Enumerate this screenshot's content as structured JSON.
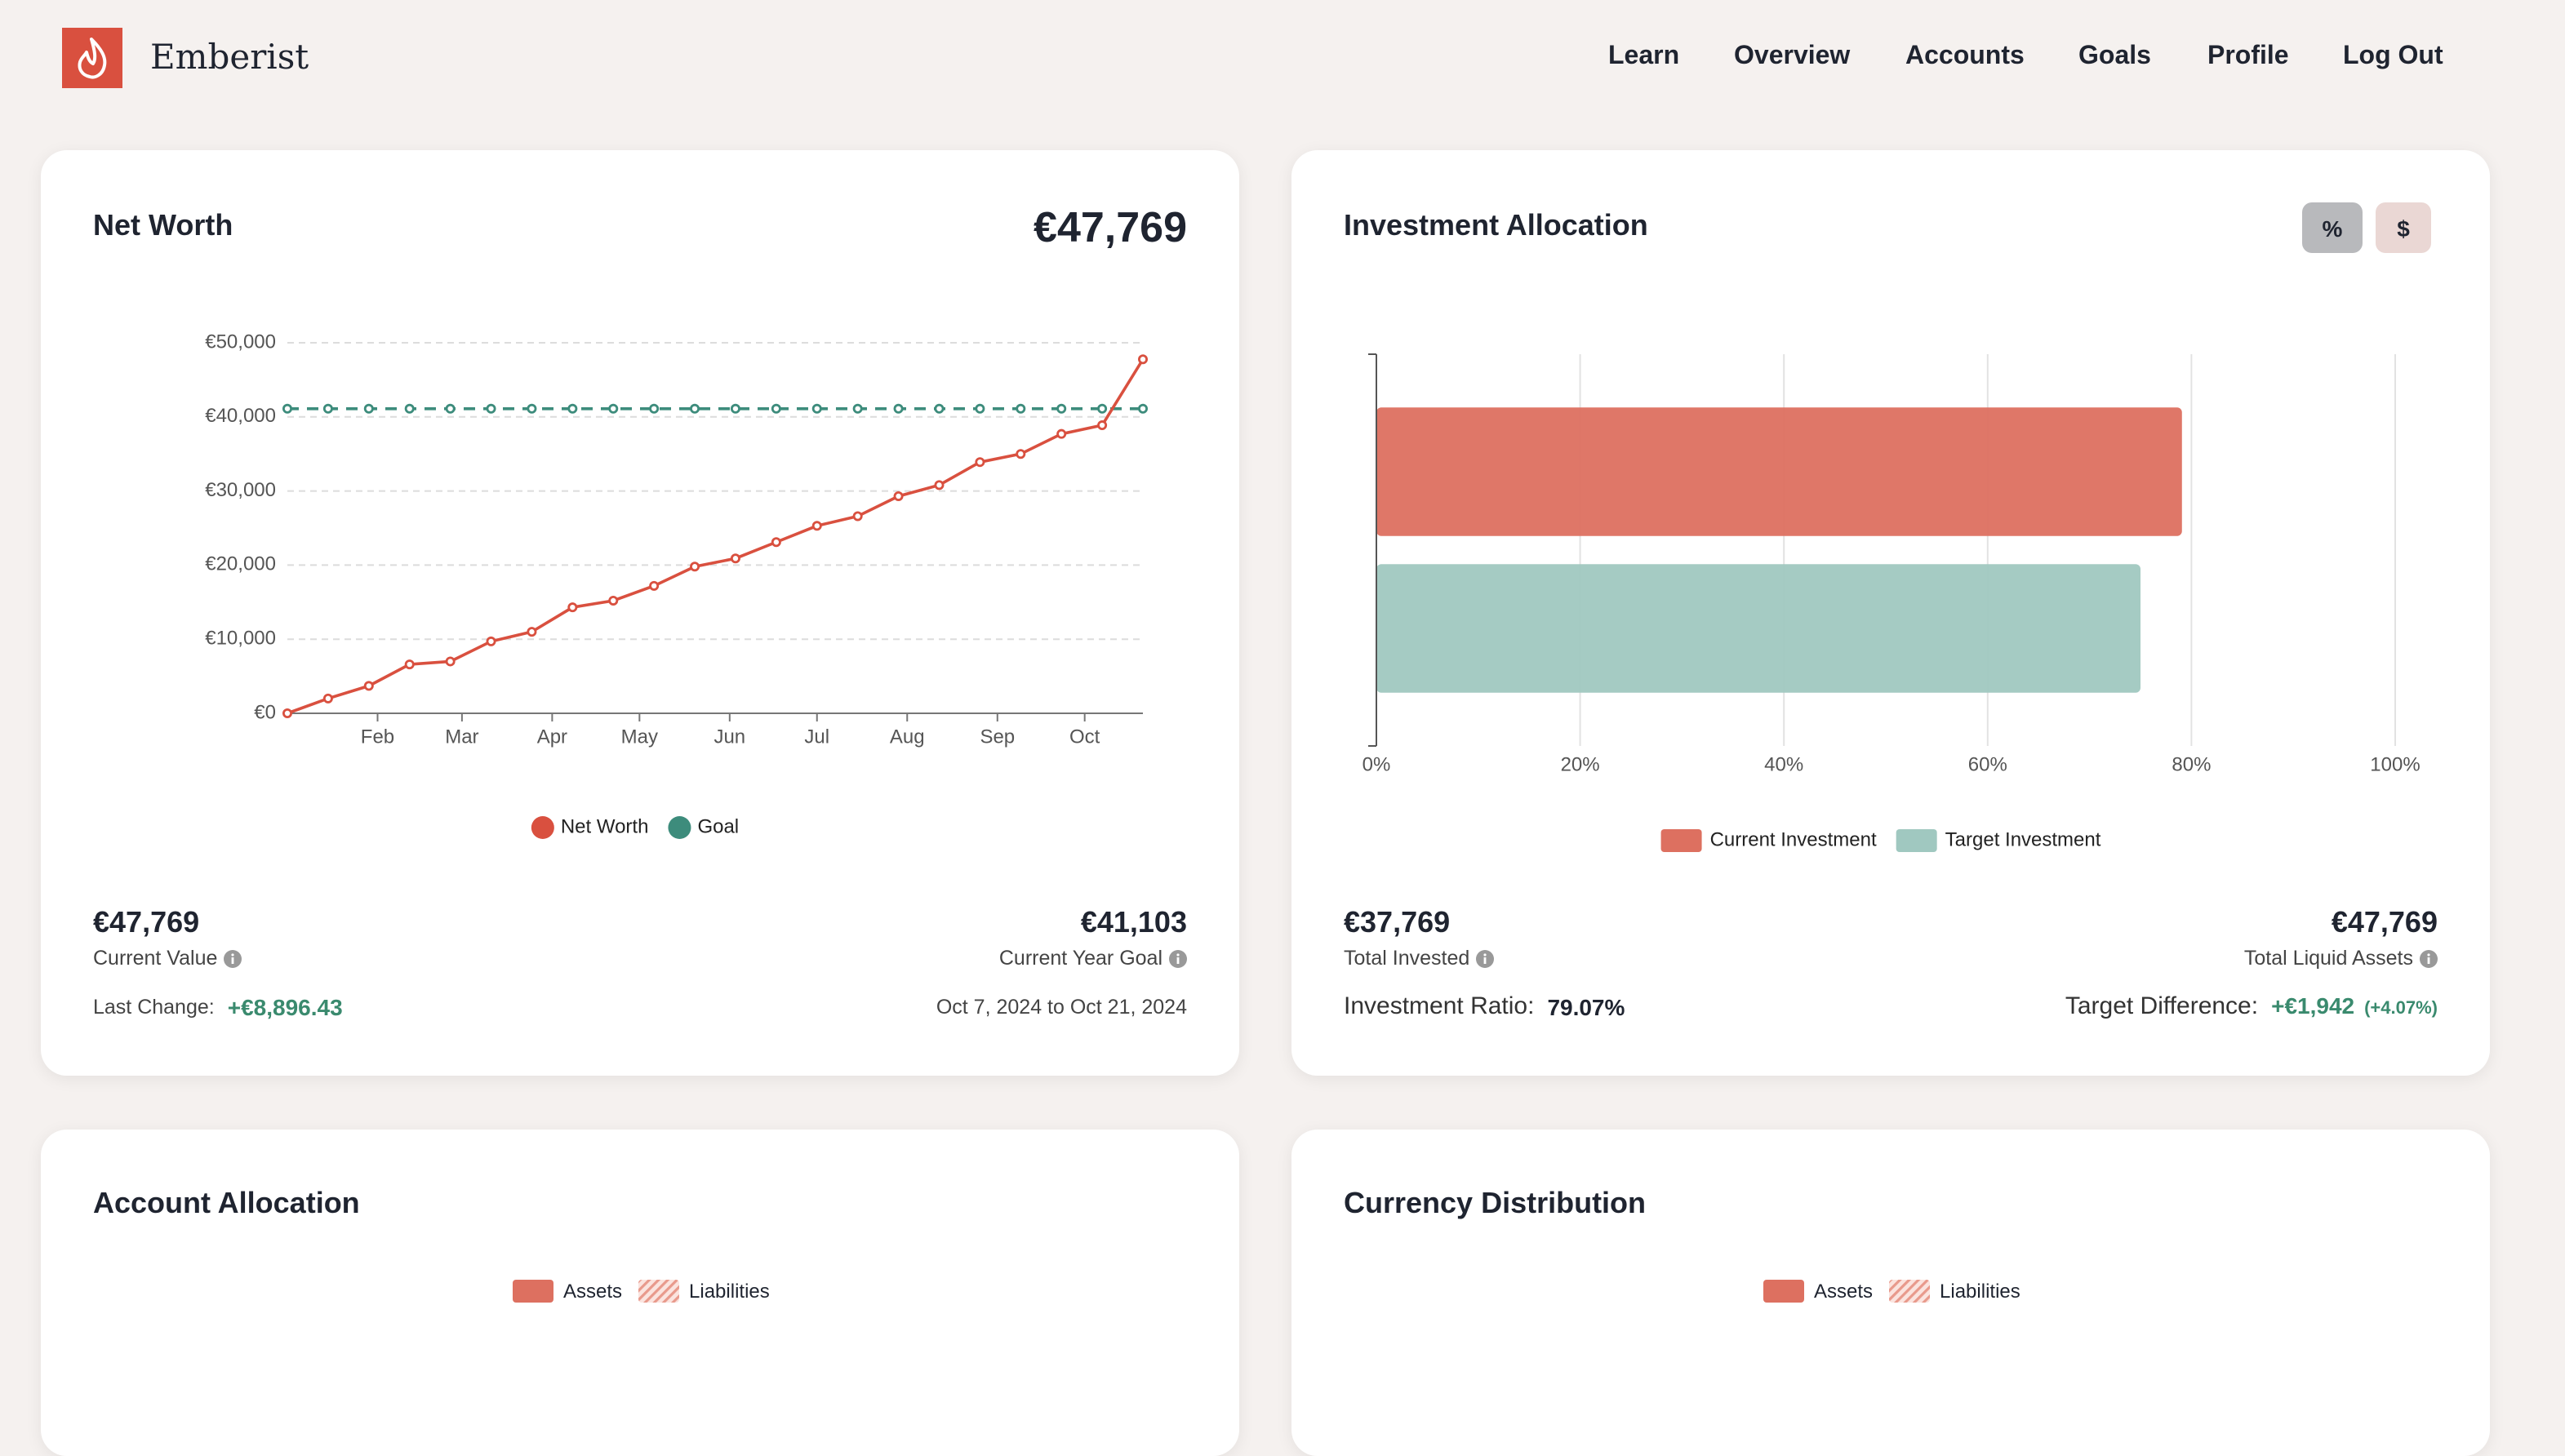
{
  "header": {
    "brand": "Emberist",
    "nav": [
      "Learn",
      "Overview",
      "Accounts",
      "Goals",
      "Profile",
      "Log Out"
    ]
  },
  "net_worth_card": {
    "title": "Net Worth",
    "headline": "€47,769",
    "current_value": "€47,769",
    "current_value_label": "Current Value",
    "goal_value": "€41,103",
    "goal_label": "Current Year Goal",
    "last_change_label": "Last Change:",
    "last_change": "+€8,896.43",
    "period": "Oct 7, 2024 to Oct 21, 2024"
  },
  "investment_card": {
    "title": "Investment Allocation",
    "toggles": [
      "%",
      "$"
    ],
    "total_invested": "€37,769",
    "total_invested_label": "Total Invested",
    "total_liquid": "€47,769",
    "total_liquid_label": "Total Liquid Assets",
    "ratio_label": "Investment Ratio:",
    "ratio": "79.07%",
    "difference_label": "Target Difference:",
    "difference": "+€1,942",
    "difference_pct": "(+4.07%)"
  },
  "account_allocation": {
    "title": "Account Allocation",
    "legend": [
      "Assets",
      "Liabilities"
    ]
  },
  "currency_distribution": {
    "title": "Currency Distribution",
    "legend": [
      "Assets",
      "Liabilities"
    ]
  },
  "chart_data": [
    {
      "type": "line",
      "x": [
        0,
        1,
        2,
        3,
        4,
        5,
        6,
        7,
        8,
        9,
        10,
        11,
        12,
        13,
        14,
        15,
        16,
        17,
        18,
        19,
        20,
        21
      ],
      "xlim": [
        0,
        21
      ],
      "xticks": [
        {
          "value": 2.214,
          "label": "Feb"
        },
        {
          "value": 4.286,
          "label": "Mar"
        },
        {
          "value": 6.5,
          "label": "Apr"
        },
        {
          "value": 8.643,
          "label": "May"
        },
        {
          "value": 10.857,
          "label": "Jun"
        },
        {
          "value": 13,
          "label": "Jul"
        },
        {
          "value": 15.214,
          "label": "Aug"
        },
        {
          "value": 17.429,
          "label": "Sep"
        },
        {
          "value": 19.571,
          "label": "Oct"
        }
      ],
      "ylim": [
        0,
        50000
      ],
      "yticks": [
        {
          "value": 0,
          "label": "€0"
        },
        {
          "value": 10000,
          "label": "€10,000"
        },
        {
          "value": 20000,
          "label": "€20,000"
        },
        {
          "value": 30000,
          "label": "€30,000"
        },
        {
          "value": 40000,
          "label": "€40,000"
        },
        {
          "value": 50000,
          "label": "€50,000"
        }
      ],
      "grid": true,
      "series": [
        {
          "name": "Net Worth",
          "color": "#d9503f",
          "values": [
            0,
            2000,
            3700,
            6600,
            7000,
            9700,
            11000,
            14300,
            15200,
            17200,
            19800,
            20900,
            23100,
            25300,
            26600,
            29300,
            30800,
            33900,
            35000,
            37700,
            38873,
            47769
          ]
        },
        {
          "name": "Goal",
          "color": "#3d8c7c",
          "dashed": true,
          "values": [
            41103,
            41103,
            41103,
            41103,
            41103,
            41103,
            41103,
            41103,
            41103,
            41103,
            41103,
            41103,
            41103,
            41103,
            41103,
            41103,
            41103,
            41103,
            41103,
            41103,
            41103,
            41103
          ]
        }
      ]
    },
    {
      "type": "bar",
      "orientation": "horizontal",
      "xlim": [
        0,
        100
      ],
      "xticks": [
        {
          "value": 0,
          "label": "0%"
        },
        {
          "value": 20,
          "label": "20%"
        },
        {
          "value": 40,
          "label": "40%"
        },
        {
          "value": 60,
          "label": "60%"
        },
        {
          "value": 80,
          "label": "80%"
        },
        {
          "value": 100,
          "label": "100%"
        }
      ],
      "grid": true,
      "series": [
        {
          "name": "Current Investment",
          "color": "#dd7060",
          "values": [
            79.07
          ]
        },
        {
          "name": "Target Investment",
          "color": "#a0c8c0",
          "values": [
            75
          ]
        }
      ]
    }
  ]
}
